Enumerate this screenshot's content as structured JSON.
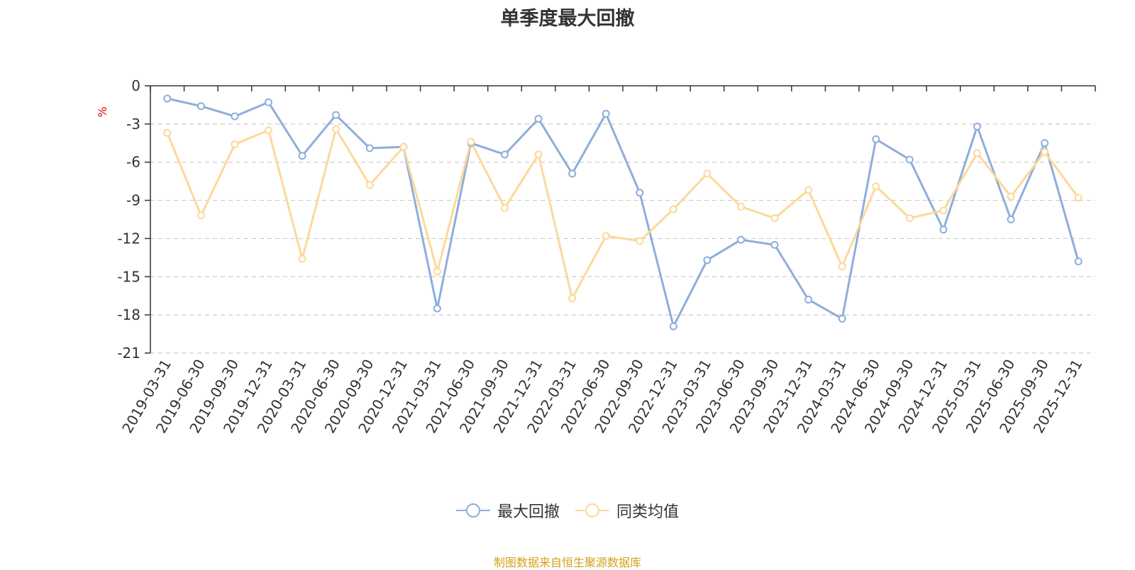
{
  "chart_data": {
    "type": "line",
    "title": "单季度最大回撤",
    "ylabel": "%",
    "xlabel": "",
    "ylim": [
      -21,
      0
    ],
    "yticks": [
      0,
      -3,
      -6,
      -9,
      -12,
      -15,
      -18,
      -21
    ],
    "grid": "horizontal-dashed",
    "legend_position": "bottom-center",
    "categories": [
      "2019-03-31",
      "2019-06-30",
      "2019-09-30",
      "2019-12-31",
      "2020-03-31",
      "2020-06-30",
      "2020-09-30",
      "2020-12-31",
      "2021-03-31",
      "2021-06-30",
      "2021-09-30",
      "2021-12-31",
      "2022-03-31",
      "2022-06-30",
      "2022-09-30",
      "2022-12-31",
      "2023-03-31",
      "2023-06-30",
      "2023-09-30",
      "2023-12-31",
      "2024-03-31",
      "2024-06-30",
      "2024-09-30",
      "2024-12-31",
      "2025-03-31",
      "2025-06-30",
      "2025-09-30",
      "2025-12-31"
    ],
    "series": [
      {
        "name": "最大回撤",
        "color": "#8eaedb",
        "values": [
          -1.0,
          -1.6,
          -2.4,
          -1.3,
          -5.5,
          -2.3,
          -4.9,
          -4.8,
          -17.5,
          -4.5,
          -5.4,
          -2.6,
          -6.9,
          -2.2,
          -8.4,
          -18.9,
          -13.7,
          -12.1,
          -12.5,
          -16.8,
          -18.3,
          -4.2,
          -5.8,
          -11.3,
          -3.2,
          -10.5,
          -4.5,
          -13.8
        ]
      },
      {
        "name": "同类均值",
        "color": "#fbd99a",
        "values": [
          -3.7,
          -10.2,
          -4.6,
          -3.5,
          -13.6,
          -3.4,
          -7.8,
          -4.8,
          -14.6,
          -4.4,
          -9.6,
          -5.4,
          -16.7,
          -11.8,
          -12.2,
          -9.7,
          -6.9,
          -9.5,
          -10.4,
          -8.2,
          -14.2,
          -7.9,
          -10.4,
          -9.8,
          -5.3,
          -8.7,
          -5.2,
          -8.8
        ]
      }
    ]
  },
  "legend": {
    "items": [
      {
        "label": "最大回撤",
        "color": "#8eaedb"
      },
      {
        "label": "同类均值",
        "color": "#fbd99a"
      }
    ]
  },
  "footer": {
    "source": "制图数据来自恒生聚源数据库"
  },
  "colors": {
    "axis": "#333333",
    "grid": "#cccccc",
    "ylabel": "#e00000",
    "source": "#d4a017"
  }
}
